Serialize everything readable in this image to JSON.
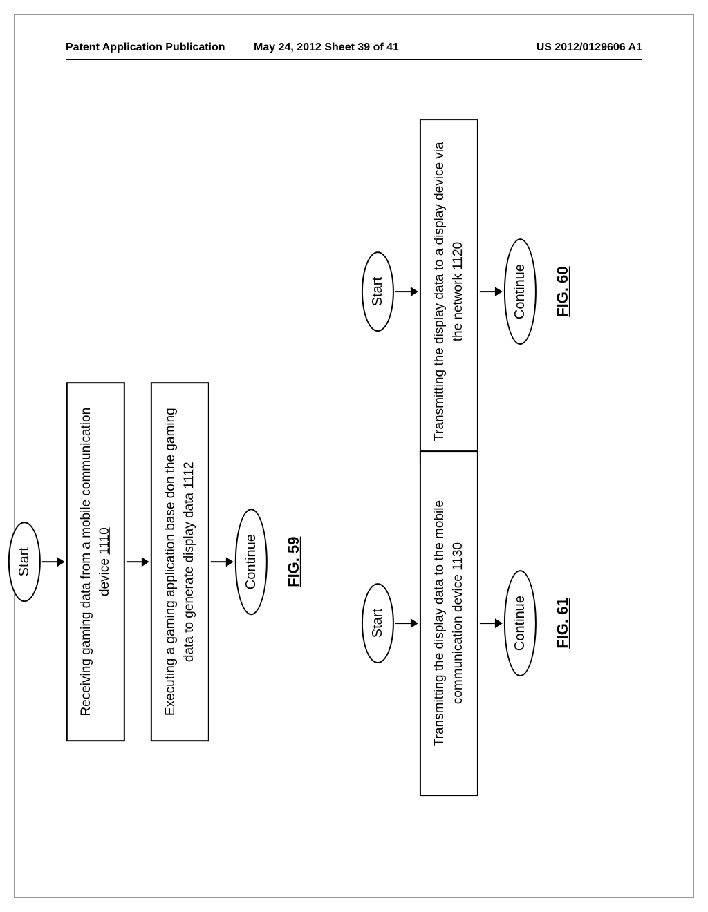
{
  "header": {
    "left": "Patent Application Publication",
    "center": "May 24, 2012  Sheet 39 of 41",
    "right": "US 2012/0129606 A1"
  },
  "fig59": {
    "start": "Start",
    "box1_text": "Receiving gaming data from a mobile communication device ",
    "box1_ref": "1110",
    "box2_text": "Executing a gaming application base don the gaming data to generate display data ",
    "box2_ref": "1112",
    "continue": "Continue",
    "label": "FIG. 59"
  },
  "fig60": {
    "start": "Start",
    "box1_text": "Transmitting the display data to a display device via the network ",
    "box1_ref": "1120",
    "continue": "Continue",
    "label": "FIG. 60"
  },
  "fig61": {
    "start": "Start",
    "box1_text": "Transmitting the display data to the mobile communication device ",
    "box1_ref": "1130",
    "continue": "Continue",
    "label": "FIG. 61"
  }
}
